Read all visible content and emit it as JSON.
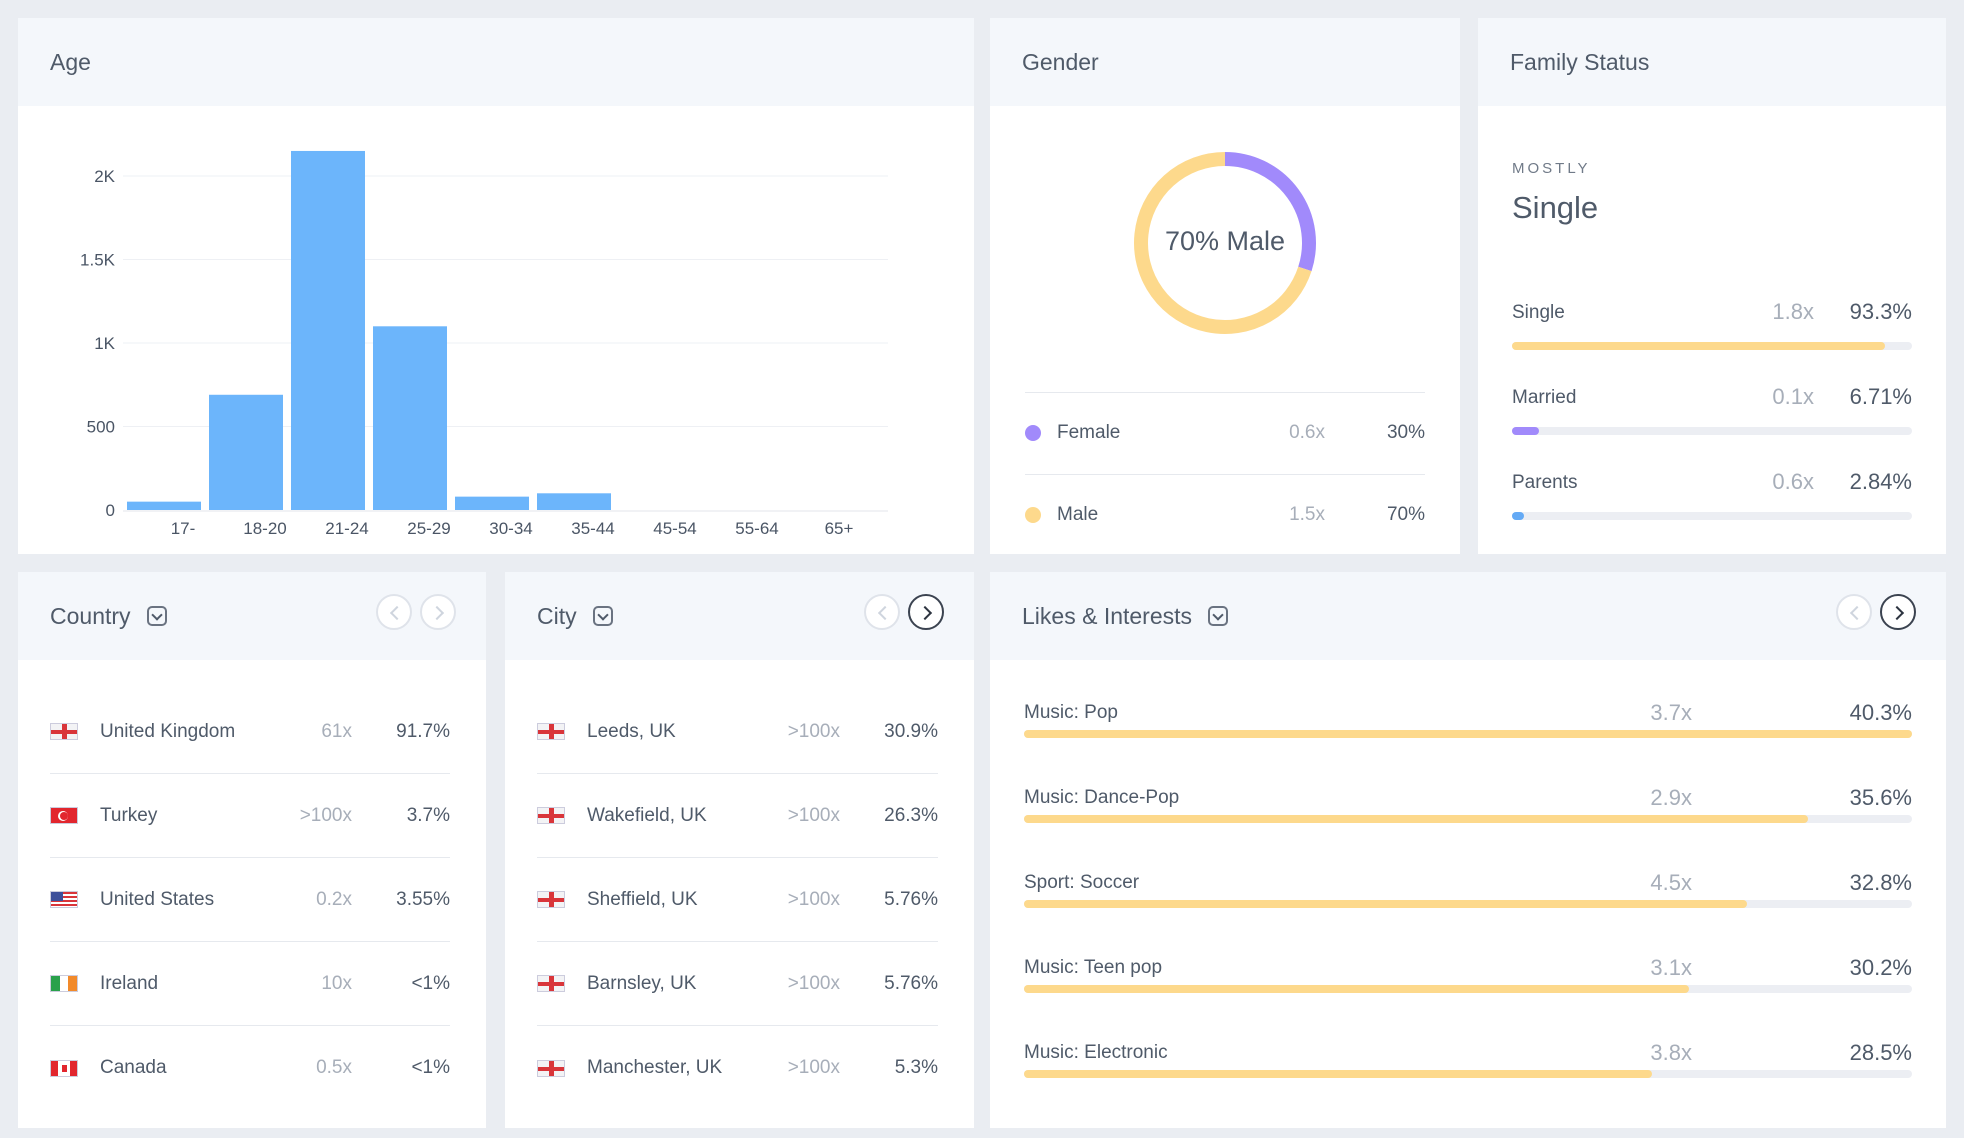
{
  "age": {
    "title": "Age",
    "chart_data": {
      "type": "bar",
      "categories": [
        "17-",
        "18-20",
        "21-24",
        "25-29",
        "30-34",
        "35-44",
        "45-54",
        "55-64",
        "65+"
      ],
      "values": [
        50,
        690,
        2150,
        1100,
        80,
        100,
        0,
        0,
        0
      ],
      "ylim": [
        0,
        2000
      ],
      "yticks": [
        {
          "v": 0,
          "label": "0"
        },
        {
          "v": 500,
          "label": "500"
        },
        {
          "v": 1000,
          "label": "1K"
        },
        {
          "v": 1500,
          "label": "1.5K"
        },
        {
          "v": 2000,
          "label": "2K"
        }
      ],
      "color": "#6cb5fb",
      "grid": true
    }
  },
  "gender": {
    "title": "Gender",
    "donut_label": "70% Male",
    "chart_data": {
      "type": "pie",
      "categories": [
        "Female",
        "Male"
      ],
      "values": [
        30,
        70
      ],
      "colors": [
        "#a18afb",
        "#fdd98c"
      ]
    },
    "rows": [
      {
        "name": "Female",
        "mult": "0.6x",
        "pct": "30%",
        "color": "#a18afb"
      },
      {
        "name": "Male",
        "mult": "1.5x",
        "pct": "70%",
        "color": "#fdd98c"
      }
    ]
  },
  "family": {
    "title": "Family Status",
    "mostly_label": "MOSTLY",
    "mostly_value": "Single",
    "rows": [
      {
        "label": "Single",
        "mult": "1.8x",
        "pct": "93.3%",
        "value": 93.3,
        "color": "#fdd98c"
      },
      {
        "label": "Married",
        "mult": "0.1x",
        "pct": "6.71%",
        "value": 6.71,
        "color": "#a18afb"
      },
      {
        "label": "Parents",
        "mult": "0.6x",
        "pct": "2.84%",
        "value": 2.84,
        "color": "#64aaf5"
      }
    ]
  },
  "country": {
    "title": "Country",
    "rows": [
      {
        "name": "United Kingdom",
        "mult": "61x",
        "pct": "91.7%",
        "flag": "uk-flag"
      },
      {
        "name": "Turkey",
        "mult": ">100x",
        "pct": "3.7%",
        "flag": "turkey-flag"
      },
      {
        "name": "United States",
        "mult": "0.2x",
        "pct": "3.55%",
        "flag": "us-flag"
      },
      {
        "name": "Ireland",
        "mult": "10x",
        "pct": "<1%",
        "flag": "ireland-flag"
      },
      {
        "name": "Canada",
        "mult": "0.5x",
        "pct": "<1%",
        "flag": "canada-flag"
      }
    ]
  },
  "city": {
    "title": "City",
    "rows": [
      {
        "name": "Leeds, UK",
        "mult": ">100x",
        "pct": "30.9%",
        "flag": "uk-flag"
      },
      {
        "name": "Wakefield, UK",
        "mult": ">100x",
        "pct": "26.3%",
        "flag": "uk-flag"
      },
      {
        "name": "Sheffield, UK",
        "mult": ">100x",
        "pct": "5.76%",
        "flag": "uk-flag"
      },
      {
        "name": "Barnsley, UK",
        "mult": ">100x",
        "pct": "5.76%",
        "flag": "uk-flag"
      },
      {
        "name": "Manchester, UK",
        "mult": ">100x",
        "pct": "5.3%",
        "flag": "uk-flag"
      }
    ]
  },
  "interests": {
    "title": "Likes & Interests",
    "color": "#fdd98c",
    "rows": [
      {
        "label": "Music: Pop",
        "mult": "3.7x",
        "pct": "40.3%",
        "value": 40.3
      },
      {
        "label": "Music: Dance-Pop",
        "mult": "2.9x",
        "pct": "35.6%",
        "value": 35.6
      },
      {
        "label": "Sport: Soccer",
        "mult": "4.5x",
        "pct": "32.8%",
        "value": 32.8
      },
      {
        "label": "Music: Teen pop",
        "mult": "3.1x",
        "pct": "30.2%",
        "value": 30.2
      },
      {
        "label": "Music: Electronic",
        "mult": "3.8x",
        "pct": "28.5%",
        "value": 28.5
      }
    ]
  }
}
